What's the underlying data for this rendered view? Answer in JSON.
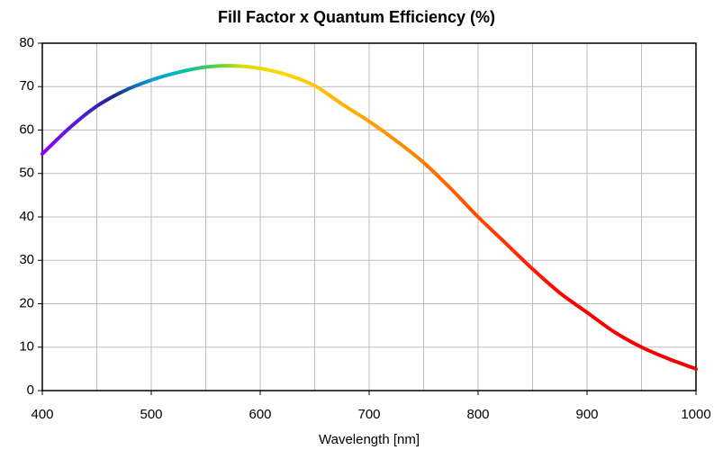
{
  "chart_data": {
    "type": "line",
    "title": "Fill Factor x Quantum Efficiency (%)",
    "x_label": "Wavelength [nm]",
    "x": [
      400,
      425,
      450,
      475,
      500,
      525,
      550,
      575,
      600,
      625,
      650,
      675,
      700,
      725,
      750,
      775,
      800,
      825,
      850,
      875,
      900,
      925,
      950,
      975,
      1000
    ],
    "series": [
      {
        "values": [
          54.5,
          60.5,
          65.5,
          69,
          71.5,
          73.3,
          74.5,
          74.8,
          74.2,
          72.7,
          70.2,
          66,
          62,
          57.5,
          52.5,
          46.5,
          40,
          34,
          28,
          22.5,
          18,
          13.5,
          10,
          7.3,
          5
        ],
        "color_stops": [
          {
            "x": 400,
            "color": "#8a00ff"
          },
          {
            "x": 440,
            "color": "#4b1fd0"
          },
          {
            "x": 465,
            "color": "#1a2a8a"
          },
          {
            "x": 500,
            "color": "#0a9ad8"
          },
          {
            "x": 530,
            "color": "#00c2a8"
          },
          {
            "x": 560,
            "color": "#5ad040"
          },
          {
            "x": 585,
            "color": "#d8e000"
          },
          {
            "x": 620,
            "color": "#ffd800"
          },
          {
            "x": 680,
            "color": "#ffb000"
          },
          {
            "x": 750,
            "color": "#ff7a00"
          },
          {
            "x": 820,
            "color": "#ff3800"
          },
          {
            "x": 880,
            "color": "#ff0000"
          },
          {
            "x": 1000,
            "color": "#f00000"
          }
        ]
      }
    ],
    "xlim": [
      400,
      1000
    ],
    "xticks": [
      400,
      500,
      600,
      700,
      800,
      900,
      1000
    ],
    "xgrid": [
      400,
      450,
      500,
      550,
      600,
      650,
      700,
      750,
      800,
      850,
      900,
      950,
      1000
    ],
    "ylim": [
      0,
      80
    ],
    "yticks": [
      0,
      10,
      20,
      30,
      40,
      50,
      60,
      70,
      80
    ],
    "grid": true
  }
}
